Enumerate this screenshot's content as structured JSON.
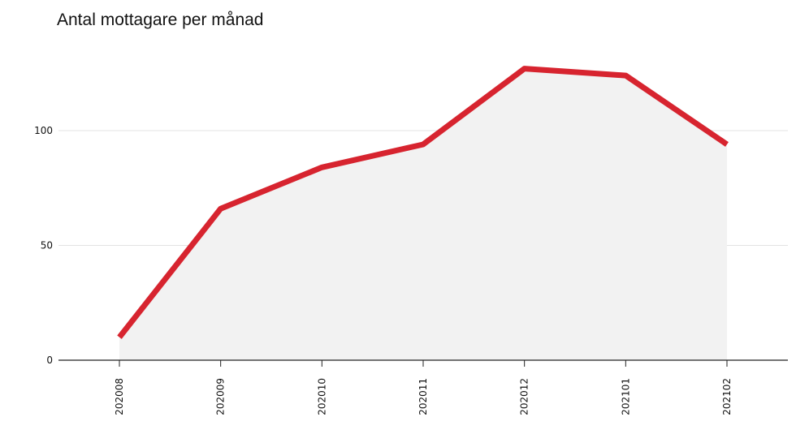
{
  "chart_data": {
    "type": "area",
    "title": "Antal mottagare per månad",
    "xlabel": "",
    "ylabel": "",
    "categories": [
      "202008",
      "202009",
      "202010",
      "202011",
      "202012",
      "202101",
      "202102"
    ],
    "series": [
      {
        "values": [
          10,
          66,
          84,
          94,
          127,
          124,
          94
        ]
      }
    ],
    "ylim": [
      0,
      135
    ],
    "yticks": [
      0,
      50,
      100
    ],
    "grid": true,
    "legend": "none",
    "colors": {
      "line": "#d7242f",
      "area": "#f2f2f2",
      "grid": "#e3e3e3",
      "axis": "#222222"
    }
  }
}
